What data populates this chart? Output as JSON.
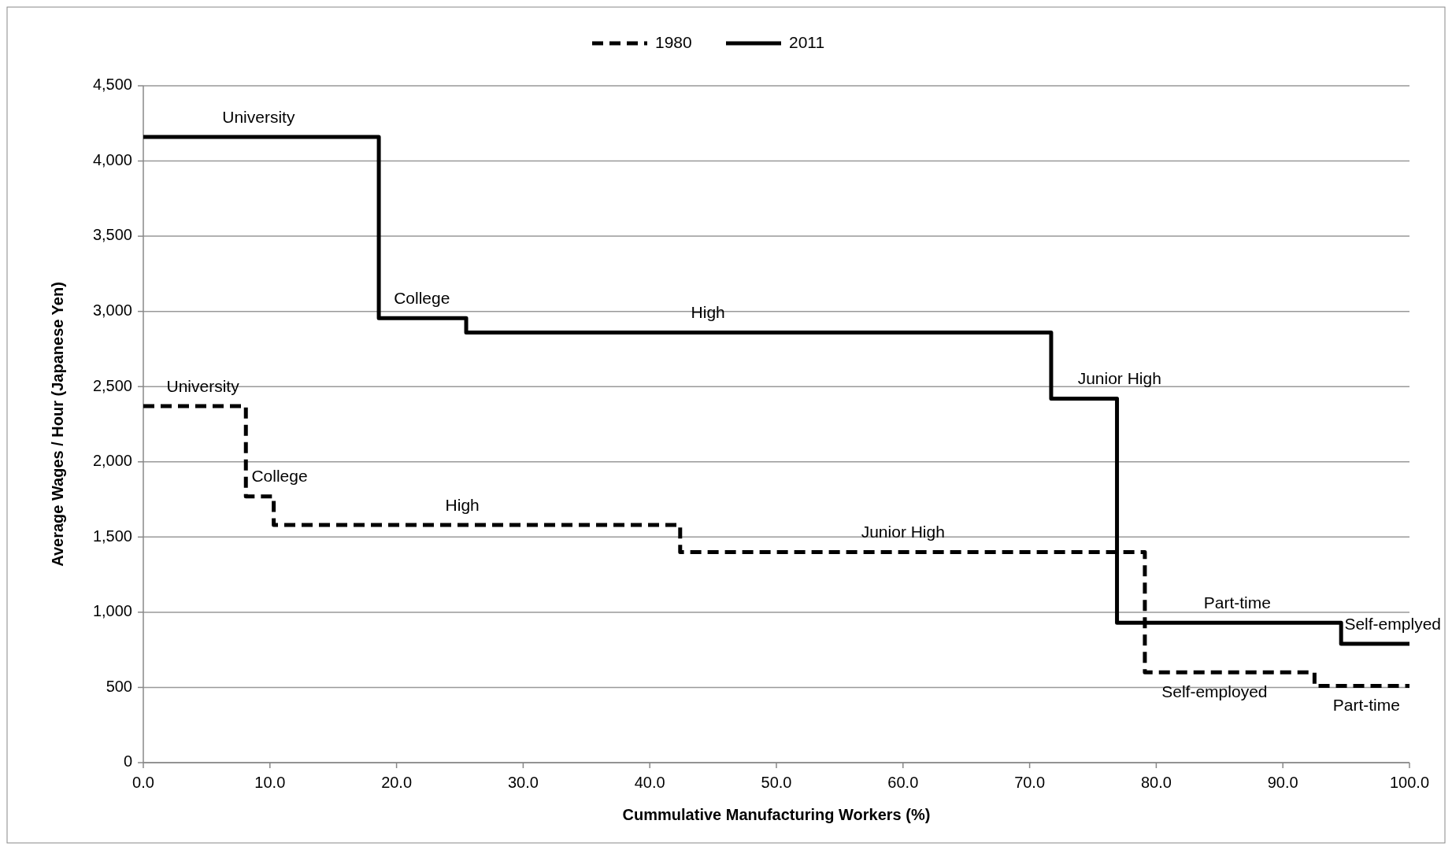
{
  "chart_data": {
    "type": "step",
    "xlabel": "Cummulative Manufacturing Workers (%)",
    "ylabel": "Average Wages / Hour (Japanese Yen)",
    "series": [
      {
        "name": "1980",
        "color": "#000000",
        "line_style": "dashed",
        "x": [
          0,
          8.1,
          10.3,
          42.4,
          79.1,
          92.5,
          100
        ],
        "values": [
          2370,
          1770,
          1580,
          1400,
          600,
          510,
          510
        ]
      },
      {
        "name": "2011",
        "color": "#000000",
        "line_style": "solid",
        "x": [
          0,
          18.6,
          25.5,
          71.7,
          76.9,
          94.6,
          100
        ],
        "values": [
          4160,
          2955,
          2860,
          2420,
          930,
          790,
          790
        ]
      }
    ],
    "xlim": [
      0,
      100
    ],
    "xticks": [
      {
        "value": 0,
        "label": "0.0"
      },
      {
        "value": 10,
        "label": "10.0"
      },
      {
        "value": 20,
        "label": "20.0"
      },
      {
        "value": 30,
        "label": "30.0"
      },
      {
        "value": 40,
        "label": "40.0"
      },
      {
        "value": 50,
        "label": "50.0"
      },
      {
        "value": 60,
        "label": "60.0"
      },
      {
        "value": 70,
        "label": "70.0"
      },
      {
        "value": 80,
        "label": "80.0"
      },
      {
        "value": 90,
        "label": "90.0"
      },
      {
        "value": 100,
        "label": "100.0"
      }
    ],
    "ylim": [
      0,
      4500
    ],
    "yticks": [
      0,
      500,
      {
        "value": 1000,
        "label": "1,000"
      },
      {
        "value": 1500,
        "label": "1,500"
      },
      {
        "value": 2000,
        "label": "2,000"
      },
      {
        "value": 2500,
        "label": "2,500"
      },
      {
        "value": 3000,
        "label": "3,000"
      },
      {
        "value": 3500,
        "label": "3,500"
      },
      {
        "value": 4000,
        "label": "4,000"
      },
      {
        "value": 4500,
        "label": "4,500"
      }
    ],
    "grid": "y",
    "legend": "top",
    "marker": "none",
    "annotations": [
      {
        "text": "University",
        "x": 9.1,
        "y": 4160
      },
      {
        "text": "College",
        "x": 22.0,
        "y": 2955
      },
      {
        "text": "High",
        "x": 44.6,
        "y": 2860
      },
      {
        "text": "Junior High",
        "x": 77.1,
        "y": 2420
      },
      {
        "text": "Part-time",
        "x": 86.4,
        "y": 930
      },
      {
        "text": "Self-emplyed",
        "x": 98.8,
        "y": 790
      },
      {
        "text": "University",
        "x": 4.7,
        "y": 2370
      },
      {
        "text": "College",
        "x": 10.0,
        "y": 1770
      },
      {
        "text": "High",
        "x": 25.2,
        "y": 1580
      },
      {
        "text": "Junior High",
        "x": 60.0,
        "y": 1400
      },
      {
        "text": "Self-employed",
        "x": 84.6,
        "y": 600
      },
      {
        "text": "Part-time",
        "x": 96.6,
        "y": 510
      }
    ]
  }
}
